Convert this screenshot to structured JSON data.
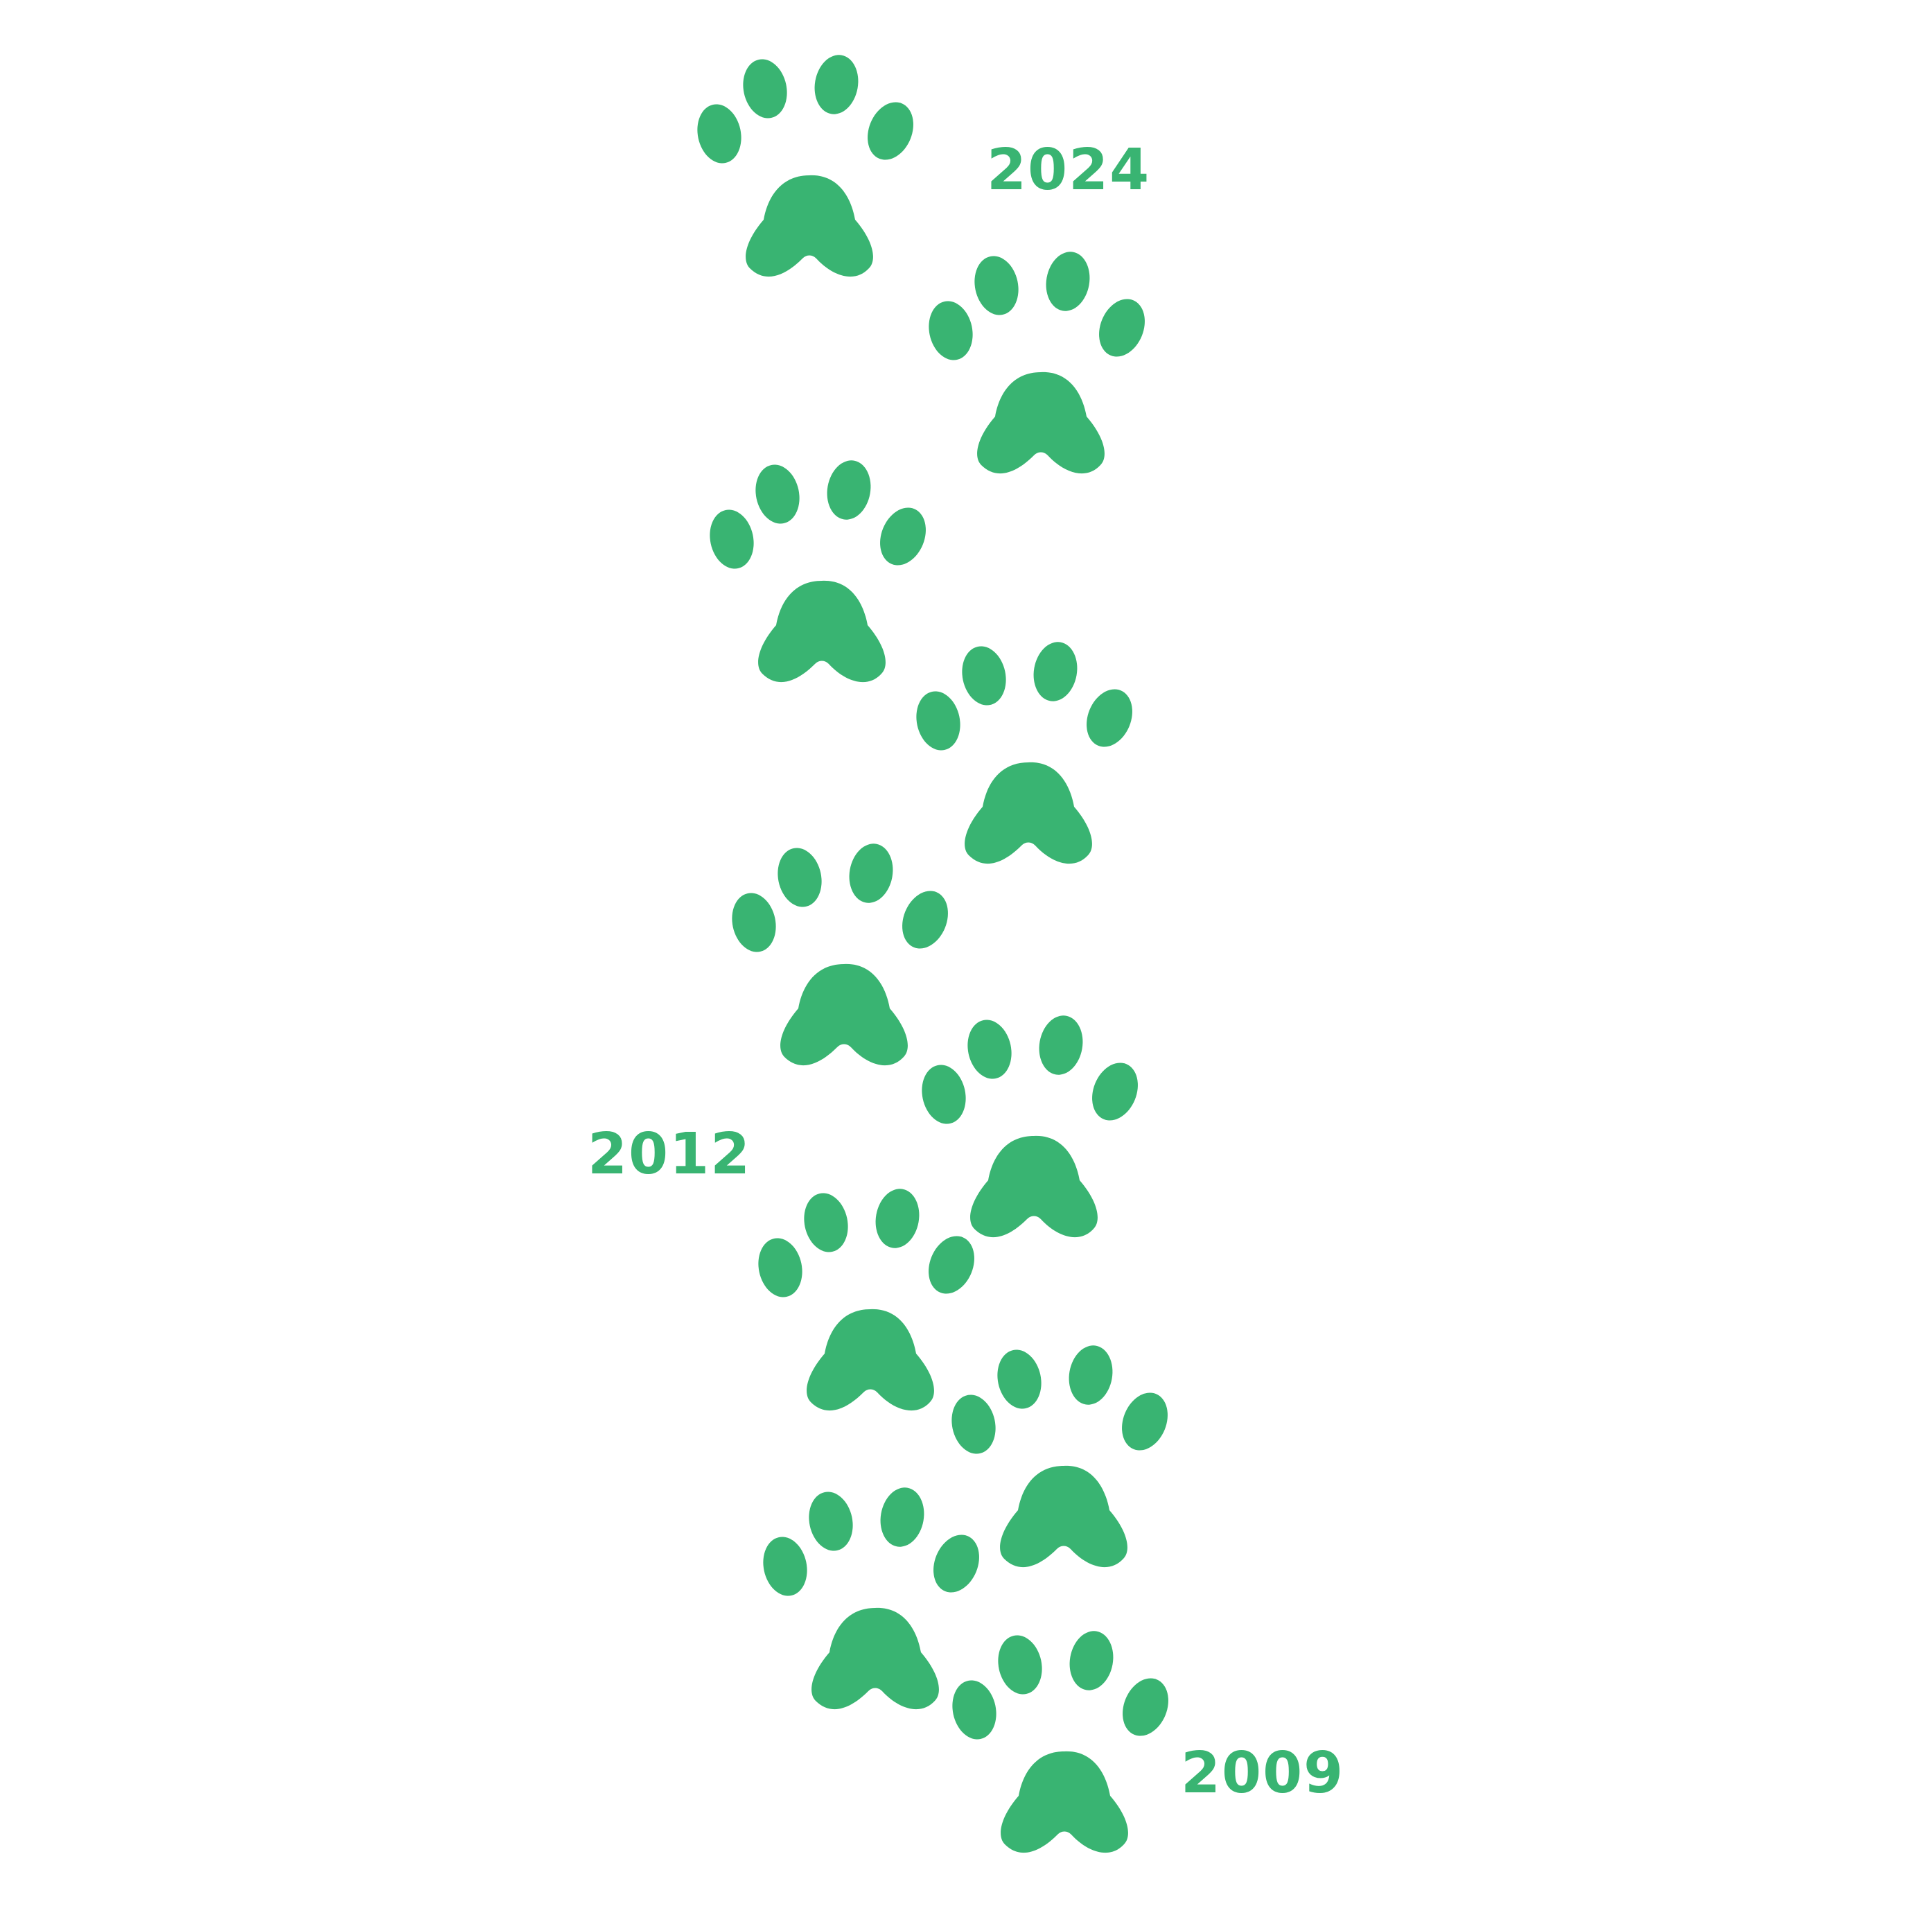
{
  "colors": {
    "paw": "#39b472",
    "label": "#39b472",
    "background": "#ffffff"
  },
  "icon": "paw-print-icon",
  "paw_count": 10,
  "labels": {
    "top": "2024",
    "middle": "2012",
    "bottom": "2009"
  }
}
